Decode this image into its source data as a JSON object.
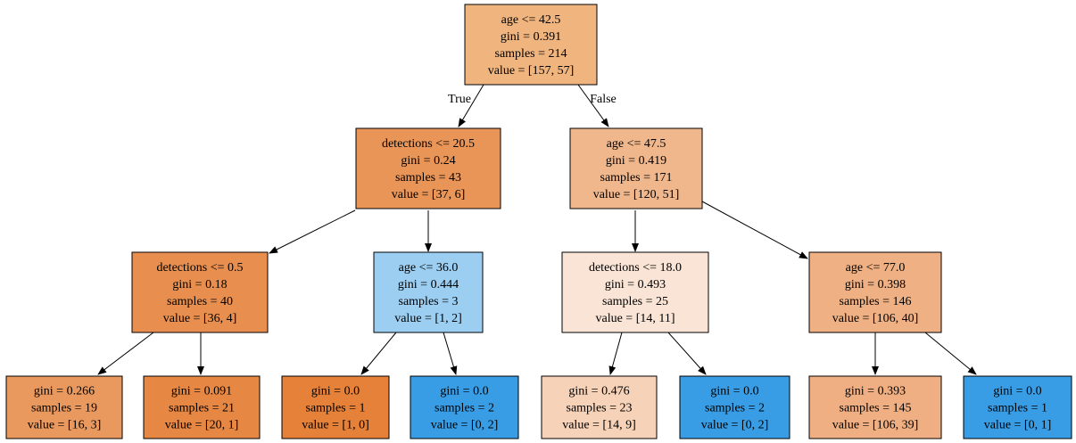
{
  "tree": {
    "nodes": [
      {
        "id": "n0",
        "lines": [
          "age <= 42.5",
          "gini = 0.391",
          "samples = 214",
          "value = [157, 57]"
        ],
        "fill": "#f0b47f"
      },
      {
        "id": "n1",
        "lines": [
          "detections <= 20.5",
          "gini = 0.24",
          "samples = 43",
          "value = [37, 6]"
        ],
        "fill": "#e99558"
      },
      {
        "id": "n2",
        "lines": [
          "age <= 47.5",
          "gini = 0.419",
          "samples = 171",
          "value = [120, 51]"
        ],
        "fill": "#f0b78d"
      },
      {
        "id": "n3",
        "lines": [
          "detections <= 0.5",
          "gini = 0.18",
          "samples = 40",
          "value = [36, 4]"
        ],
        "fill": "#e88f4f"
      },
      {
        "id": "n4",
        "lines": [
          "age <= 36.0",
          "gini = 0.444",
          "samples = 3",
          "value = [1, 2]"
        ],
        "fill": "#9ccef2"
      },
      {
        "id": "n5",
        "lines": [
          "detections <= 18.0",
          "gini = 0.493",
          "samples = 25",
          "value = [14, 11]"
        ],
        "fill": "#f9e4d5"
      },
      {
        "id": "n6",
        "lines": [
          "age <= 77.0",
          "gini = 0.398",
          "samples = 146",
          "value = [106, 40]"
        ],
        "fill": "#efb083"
      },
      {
        "id": "n7",
        "lines": [
          "gini = 0.266",
          "samples = 19",
          "value = [16, 3]"
        ],
        "fill": "#ea995e"
      },
      {
        "id": "n8",
        "lines": [
          "gini = 0.091",
          "samples = 21",
          "value = [20, 1]"
        ],
        "fill": "#e68743"
      },
      {
        "id": "n9",
        "lines": [
          "gini = 0.0",
          "samples = 1",
          "value = [1, 0]"
        ],
        "fill": "#e58139"
      },
      {
        "id": "n10",
        "lines": [
          "gini = 0.0",
          "samples = 2",
          "value = [0, 2]"
        ],
        "fill": "#399de5"
      },
      {
        "id": "n11",
        "lines": [
          "gini = 0.476",
          "samples = 23",
          "value = [14, 9]"
        ],
        "fill": "#f6d2b8"
      },
      {
        "id": "n12",
        "lines": [
          "gini = 0.0",
          "samples = 2",
          "value = [0, 2]"
        ],
        "fill": "#399de5"
      },
      {
        "id": "n13",
        "lines": [
          "gini = 0.393",
          "samples = 145",
          "value = [106, 39]"
        ],
        "fill": "#efaf82"
      },
      {
        "id": "n14",
        "lines": [
          "gini = 0.0",
          "samples = 1",
          "value = [0, 1]"
        ],
        "fill": "#399de5"
      }
    ],
    "edges": [
      {
        "from": "n0",
        "to": "n1",
        "label": "True"
      },
      {
        "from": "n0",
        "to": "n2",
        "label": "False"
      },
      {
        "from": "n1",
        "to": "n3",
        "label": ""
      },
      {
        "from": "n1",
        "to": "n4",
        "label": ""
      },
      {
        "from": "n2",
        "to": "n5",
        "label": ""
      },
      {
        "from": "n2",
        "to": "n6",
        "label": ""
      },
      {
        "from": "n3",
        "to": "n7",
        "label": ""
      },
      {
        "from": "n3",
        "to": "n8",
        "label": ""
      },
      {
        "from": "n4",
        "to": "n9",
        "label": ""
      },
      {
        "from": "n4",
        "to": "n10",
        "label": ""
      },
      {
        "from": "n5",
        "to": "n11",
        "label": ""
      },
      {
        "from": "n5",
        "to": "n12",
        "label": ""
      },
      {
        "from": "n6",
        "to": "n13",
        "label": ""
      },
      {
        "from": "n6",
        "to": "n14",
        "label": ""
      }
    ]
  }
}
